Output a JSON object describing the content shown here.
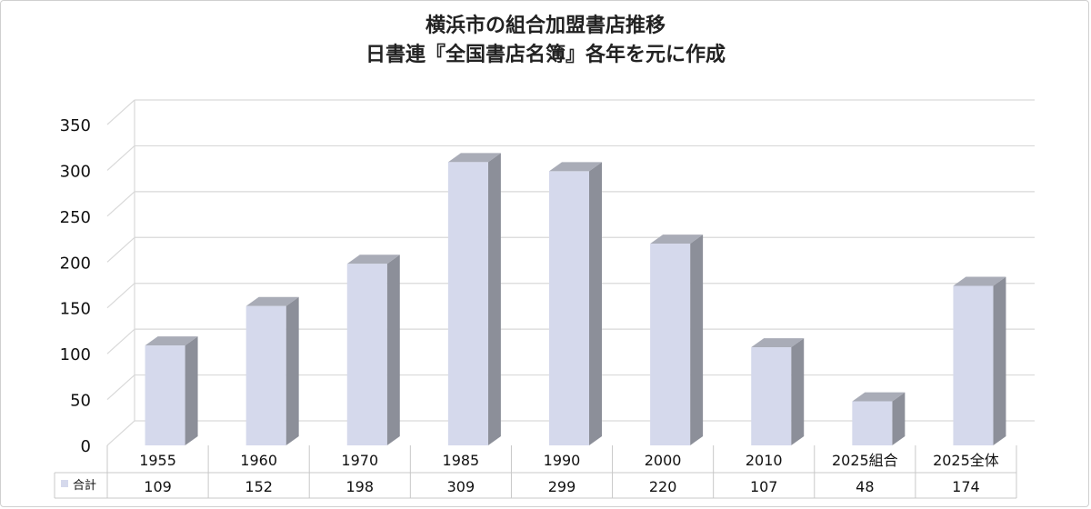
{
  "chart_data": {
    "type": "bar",
    "title": "横浜市の組合加盟書店推移",
    "subtitle": "日書連『全国書店名簿』各年を元に作成",
    "categories": [
      "1955",
      "1960",
      "1970",
      "1985",
      "1990",
      "2000",
      "2010",
      "2025組合",
      "2025全体"
    ],
    "series": [
      {
        "name": "合計",
        "values": [
          109,
          152,
          198,
          309,
          299,
          220,
          107,
          48,
          174
        ]
      }
    ],
    "ylim": [
      0,
      350
    ],
    "yticks": [
      0,
      50,
      100,
      150,
      200,
      250,
      300,
      350
    ],
    "grid": true,
    "style": "3d-column",
    "legend": "data-table-row",
    "colors": {
      "bar_front": "#d5d9ec",
      "bar_side": "#8c8f99",
      "bar_top": "#a9acb7",
      "gridline": "#d9d9d9",
      "legend_key": "#d5d9ec"
    }
  }
}
